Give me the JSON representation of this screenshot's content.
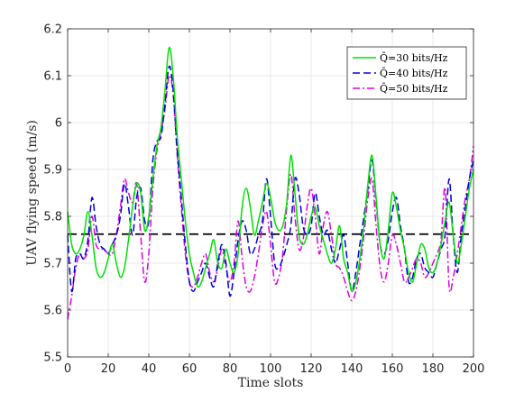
{
  "chart_data": {
    "type": "line",
    "xlabel": "Time slots",
    "ylabel": "UAV flying speed (m/s)",
    "xlim": [
      0,
      200
    ],
    "ylim": [
      5.5,
      6.2
    ],
    "xticks": [
      "0",
      "20",
      "40",
      "60",
      "80",
      "100",
      "120",
      "140",
      "160",
      "180",
      "200"
    ],
    "yticks": [
      "5.5",
      "5.6",
      "5.7",
      "5.8",
      "5.9",
      "6",
      "6.1",
      "6.2"
    ],
    "grid": true,
    "legend_position": "top-right",
    "series": [
      {
        "name": "Q̄=30 bits/Hz",
        "color": "#00e000",
        "dash": "solid",
        "x": [
          0,
          2,
          4,
          6,
          8,
          10,
          12,
          14,
          16,
          18,
          20,
          22,
          24,
          26,
          28,
          30,
          32,
          34,
          36,
          38,
          40,
          42,
          44,
          46,
          48,
          50,
          52,
          54,
          56,
          58,
          60,
          62,
          64,
          66,
          68,
          70,
          72,
          74,
          76,
          78,
          80,
          82,
          84,
          86,
          88,
          90,
          92,
          94,
          96,
          98,
          100,
          102,
          104,
          106,
          108,
          110,
          112,
          114,
          116,
          118,
          120,
          122,
          124,
          126,
          128,
          130,
          132,
          134,
          136,
          138,
          140,
          142,
          144,
          146,
          148,
          150,
          152,
          154,
          156,
          158,
          160,
          162,
          164,
          166,
          168,
          170,
          172,
          174,
          176,
          178,
          180,
          182,
          184,
          186,
          188,
          190,
          192,
          194,
          196,
          198,
          200
        ],
        "values": [
          5.81,
          5.74,
          5.72,
          5.73,
          5.76,
          5.81,
          5.76,
          5.69,
          5.67,
          5.68,
          5.71,
          5.74,
          5.7,
          5.67,
          5.69,
          5.75,
          5.82,
          5.87,
          5.85,
          5.77,
          5.8,
          5.88,
          5.95,
          5.99,
          6.07,
          6.16,
          6.1,
          5.97,
          5.88,
          5.79,
          5.72,
          5.68,
          5.65,
          5.66,
          5.69,
          5.72,
          5.75,
          5.7,
          5.69,
          5.73,
          5.7,
          5.68,
          5.72,
          5.82,
          5.86,
          5.82,
          5.76,
          5.79,
          5.83,
          5.87,
          5.84,
          5.79,
          5.77,
          5.78,
          5.83,
          5.93,
          5.85,
          5.76,
          5.74,
          5.76,
          5.8,
          5.82,
          5.78,
          5.75,
          5.72,
          5.7,
          5.73,
          5.78,
          5.71,
          5.68,
          5.64,
          5.66,
          5.71,
          5.78,
          5.87,
          5.93,
          5.84,
          5.74,
          5.71,
          5.77,
          5.85,
          5.82,
          5.77,
          5.73,
          5.68,
          5.66,
          5.7,
          5.74,
          5.73,
          5.69,
          5.68,
          5.7,
          5.74,
          5.79,
          5.83,
          5.76,
          5.7,
          5.74,
          5.8,
          5.86,
          5.9
        ]
      },
      {
        "name": "Q̄=40 bits/Hz",
        "color": "#0000dd",
        "dash": "dashed",
        "x": [
          0,
          2,
          4,
          6,
          8,
          10,
          12,
          14,
          16,
          18,
          20,
          22,
          24,
          26,
          28,
          30,
          32,
          34,
          36,
          38,
          40,
          42,
          44,
          46,
          48,
          50,
          52,
          54,
          56,
          58,
          60,
          62,
          64,
          66,
          68,
          70,
          72,
          74,
          76,
          78,
          80,
          82,
          84,
          86,
          88,
          90,
          92,
          94,
          96,
          98,
          100,
          102,
          104,
          106,
          108,
          110,
          112,
          114,
          116,
          118,
          120,
          122,
          124,
          126,
          128,
          130,
          132,
          134,
          136,
          138,
          140,
          142,
          144,
          146,
          148,
          150,
          152,
          154,
          156,
          158,
          160,
          162,
          164,
          166,
          168,
          170,
          172,
          174,
          176,
          178,
          180,
          182,
          184,
          186,
          188,
          190,
          192,
          194,
          196,
          198,
          200
        ],
        "values": [
          5.76,
          5.64,
          5.71,
          5.72,
          5.71,
          5.75,
          5.84,
          5.78,
          5.74,
          5.73,
          5.72,
          5.74,
          5.76,
          5.8,
          5.87,
          5.82,
          5.76,
          5.84,
          5.86,
          5.79,
          5.79,
          5.92,
          5.96,
          5.97,
          6.04,
          6.12,
          6.07,
          5.94,
          5.84,
          5.74,
          5.66,
          5.64,
          5.66,
          5.68,
          5.7,
          5.67,
          5.65,
          5.7,
          5.74,
          5.7,
          5.63,
          5.68,
          5.75,
          5.79,
          5.77,
          5.72,
          5.73,
          5.76,
          5.79,
          5.88,
          5.8,
          5.7,
          5.69,
          5.71,
          5.74,
          5.78,
          5.88,
          5.85,
          5.78,
          5.76,
          5.78,
          5.85,
          5.8,
          5.76,
          5.77,
          5.73,
          5.7,
          5.73,
          5.76,
          5.7,
          5.64,
          5.68,
          5.74,
          5.8,
          5.86,
          5.92,
          5.83,
          5.74,
          5.72,
          5.75,
          5.81,
          5.84,
          5.78,
          5.73,
          5.66,
          5.67,
          5.71,
          5.72,
          5.69,
          5.68,
          5.67,
          5.7,
          5.73,
          5.76,
          5.88,
          5.76,
          5.68,
          5.76,
          5.82,
          5.88,
          5.92
        ]
      },
      {
        "name": "Q̄=50 bits/Hz",
        "color": "#dd00dd",
        "dash": "dashdot",
        "x": [
          0,
          2,
          4,
          6,
          8,
          10,
          12,
          14,
          16,
          18,
          20,
          22,
          24,
          26,
          28,
          30,
          32,
          34,
          36,
          38,
          40,
          42,
          44,
          46,
          48,
          50,
          52,
          54,
          56,
          58,
          60,
          62,
          64,
          66,
          68,
          70,
          72,
          74,
          76,
          78,
          80,
          82,
          84,
          86,
          88,
          90,
          92,
          94,
          96,
          98,
          100,
          102,
          104,
          106,
          108,
          110,
          112,
          114,
          116,
          118,
          120,
          122,
          124,
          126,
          128,
          130,
          132,
          134,
          136,
          138,
          140,
          142,
          144,
          146,
          148,
          150,
          152,
          154,
          156,
          158,
          160,
          162,
          164,
          166,
          168,
          170,
          172,
          174,
          176,
          178,
          180,
          182,
          184,
          186,
          188,
          190,
          192,
          194,
          196,
          198,
          200
        ],
        "values": [
          5.58,
          5.63,
          5.69,
          5.72,
          5.71,
          5.73,
          5.8,
          5.74,
          5.73,
          5.73,
          5.72,
          5.72,
          5.76,
          5.82,
          5.88,
          5.85,
          5.83,
          5.87,
          5.76,
          5.66,
          5.72,
          5.86,
          5.94,
          5.98,
          6.03,
          6.1,
          6.06,
          5.93,
          5.82,
          5.72,
          5.66,
          5.65,
          5.67,
          5.7,
          5.72,
          5.68,
          5.66,
          5.69,
          5.73,
          5.69,
          5.66,
          5.7,
          5.79,
          5.71,
          5.65,
          5.64,
          5.67,
          5.72,
          5.78,
          5.81,
          5.74,
          5.66,
          5.67,
          5.72,
          5.82,
          5.89,
          5.8,
          5.73,
          5.75,
          5.82,
          5.86,
          5.8,
          5.72,
          5.78,
          5.81,
          5.76,
          5.7,
          5.69,
          5.67,
          5.64,
          5.62,
          5.64,
          5.69,
          5.76,
          5.84,
          5.88,
          5.78,
          5.69,
          5.66,
          5.7,
          5.76,
          5.74,
          5.7,
          5.66,
          5.67,
          5.69,
          5.71,
          5.7,
          5.67,
          5.68,
          5.7,
          5.72,
          5.75,
          5.86,
          5.65,
          5.67,
          5.72,
          5.78,
          5.84,
          5.88,
          5.95
        ]
      }
    ],
    "reference_line": {
      "y": 5.762,
      "color": "#000000",
      "dash": "dashed"
    }
  }
}
